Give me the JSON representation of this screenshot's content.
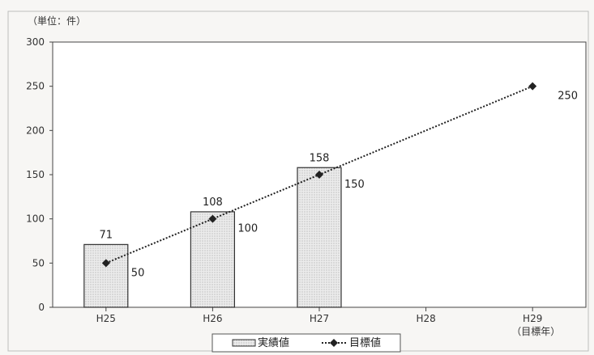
{
  "chart_data": {
    "type": "bar",
    "unit_label": "（単位：件）",
    "categories": [
      "H25",
      "H26",
      "H27",
      "H28",
      "H29"
    ],
    "category_note": {
      "H29": "（目標年）"
    },
    "ylim": [
      0,
      300
    ],
    "yticks": [
      0,
      50,
      100,
      150,
      200,
      250,
      300
    ],
    "grid": false,
    "legend_position": "bottom",
    "series": [
      {
        "name": "実績値",
        "kind": "bar",
        "values": [
          71,
          108,
          158,
          null,
          null
        ]
      },
      {
        "name": "目標値",
        "kind": "line",
        "style": "dotted",
        "marker": "diamond",
        "values": [
          50,
          100,
          150,
          null,
          250
        ]
      }
    ]
  },
  "colors": {
    "bar_fill": "#e6e6e6",
    "bar_stroke": "#333333",
    "line": "#222222",
    "frame": "#444444"
  }
}
